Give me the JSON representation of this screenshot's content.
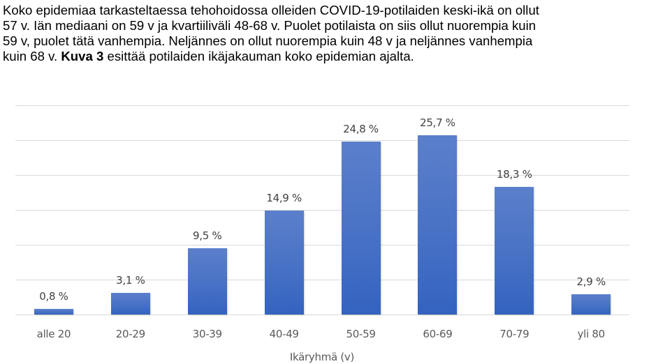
{
  "intro": {
    "lines": [
      "Koko epidemiaa tarkasteltaessa tehohoidossa olleiden COVID-19-potilaiden keski-ikä on ollut",
      "57 v. Iän mediaani on 59 v ja kvartiiliväli 48-68 v. Puolet potilaista on siis ollut nuorempia kuin",
      "59 v, puolet tätä vanhempia. Neljännes on ollut nuorempia kuin 48 v ja neljännes vanhempia"
    ],
    "last_line_prefix": "kuin 68 v. ",
    "last_line_bold": "Kuva 3",
    "last_line_suffix": " esittää potilaiden ikäjakauman koko epidemian ajalta."
  },
  "chart_data": {
    "type": "bar",
    "title": "",
    "categories": [
      "alle 20",
      "20-29",
      "30-39",
      "40-49",
      "50-59",
      "60-69",
      "70-79",
      "yli 80"
    ],
    "values": [
      0.8,
      3.1,
      9.5,
      14.9,
      24.8,
      25.7,
      18.3,
      2.9
    ],
    "value_labels": [
      "0,8 %",
      "3,1 %",
      "9,5 %",
      "14,9 %",
      "24,8 %",
      "25,7 %",
      "18,3 %",
      "2,9 %"
    ],
    "xlabel": "Ikäryhmä (v)",
    "ylabel": "",
    "ylim": [
      0,
      30
    ],
    "gridlines": [
      0,
      5,
      10,
      15,
      20,
      25,
      30
    ],
    "grid": true,
    "y_axis_visible": false,
    "legend": "none",
    "bar_color": "#4472c4"
  }
}
